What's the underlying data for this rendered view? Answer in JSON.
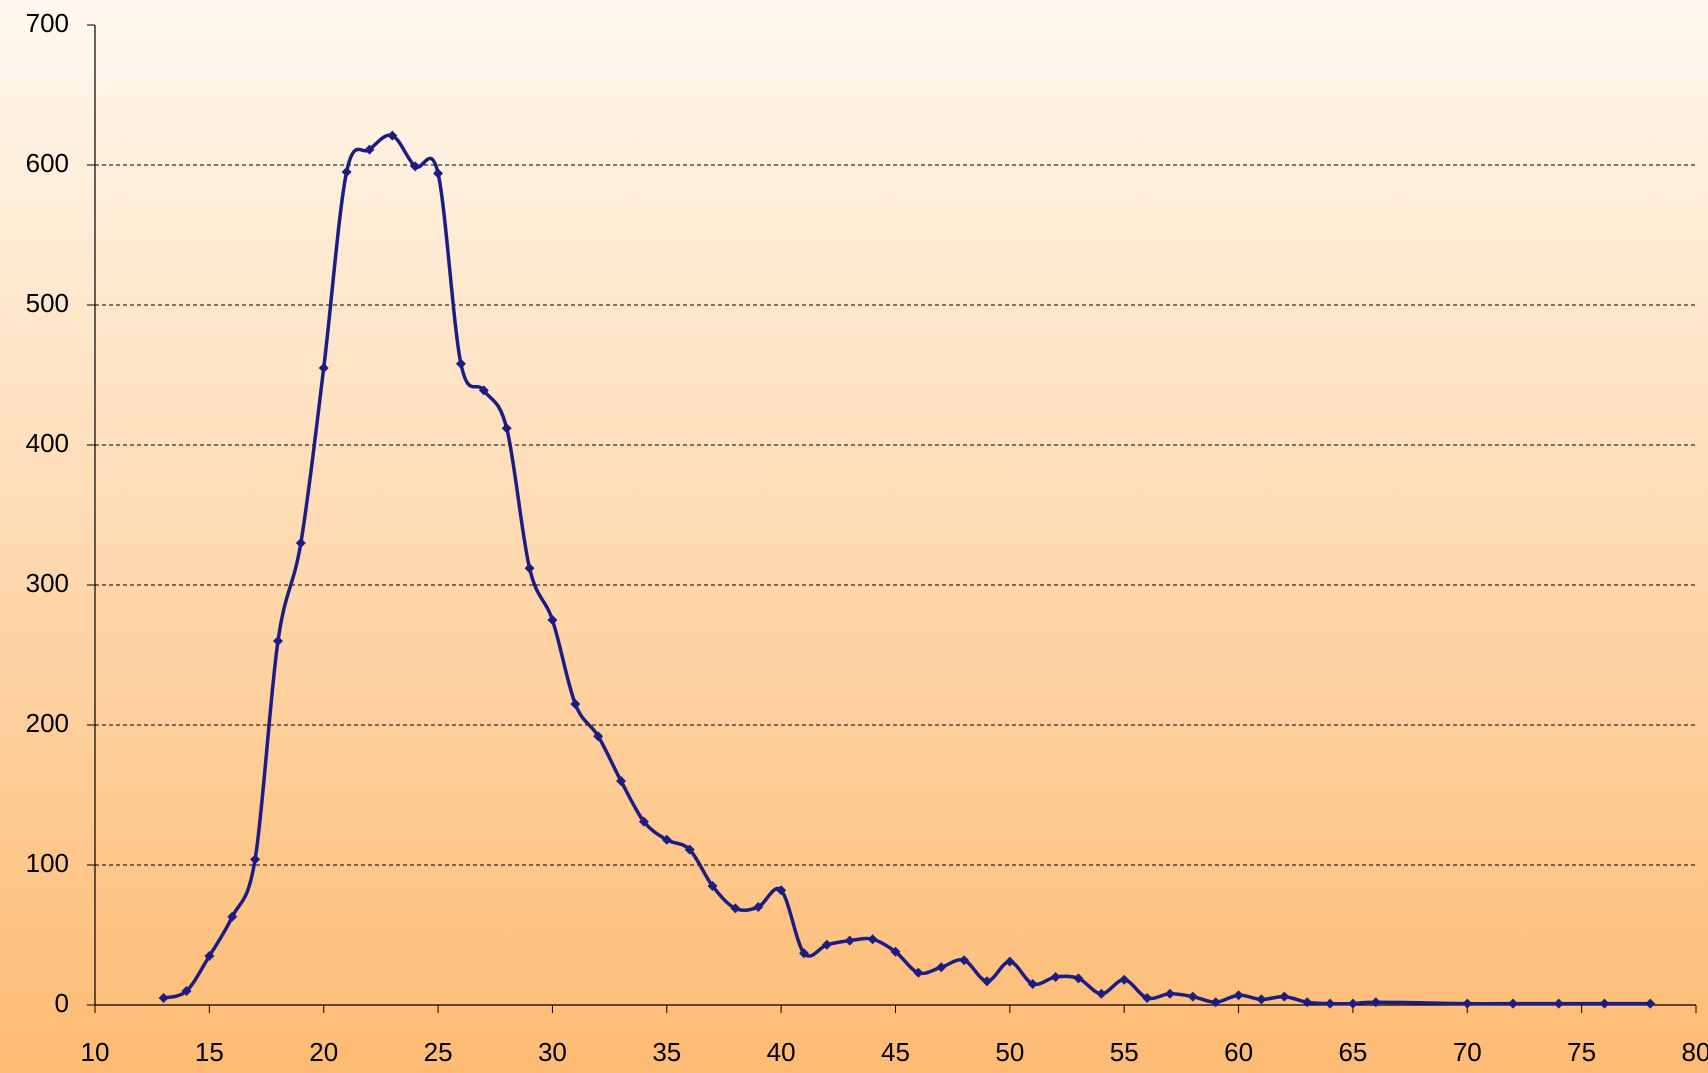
{
  "chart_data": {
    "type": "line",
    "x": [
      13,
      14,
      15,
      16,
      17,
      18,
      19,
      20,
      21,
      22,
      23,
      24,
      25,
      26,
      27,
      28,
      29,
      30,
      31,
      32,
      33,
      34,
      35,
      36,
      37,
      38,
      39,
      40,
      41,
      42,
      43,
      44,
      45,
      46,
      47,
      48,
      49,
      50,
      51,
      52,
      53,
      54,
      55,
      56,
      57,
      58,
      59,
      60,
      61,
      62,
      63,
      64,
      65,
      66,
      70,
      72,
      74,
      76,
      78
    ],
    "series": [
      {
        "color": "#1c1c82",
        "values": [
          5,
          10,
          35,
          63,
          104,
          260,
          330,
          455,
          595,
          611,
          621,
          599,
          594,
          458,
          439,
          412,
          312,
          275,
          215,
          192,
          160,
          131,
          118,
          111,
          85,
          69,
          70,
          82,
          37,
          43,
          46,
          47,
          38,
          23,
          27,
          32,
          17,
          31,
          15,
          20,
          19,
          8,
          18,
          5,
          8,
          6,
          2,
          7,
          4,
          6,
          2,
          1,
          1,
          2,
          1,
          1,
          1,
          1,
          1
        ]
      }
    ],
    "xlim": [
      10,
      80
    ],
    "xticks": [
      10,
      15,
      20,
      25,
      30,
      35,
      40,
      45,
      50,
      55,
      60,
      65,
      70,
      75,
      80
    ],
    "ylim": [
      0,
      700
    ],
    "yticks": [
      0,
      100,
      200,
      300,
      400,
      500,
      600,
      700
    ],
    "grid": true
  }
}
